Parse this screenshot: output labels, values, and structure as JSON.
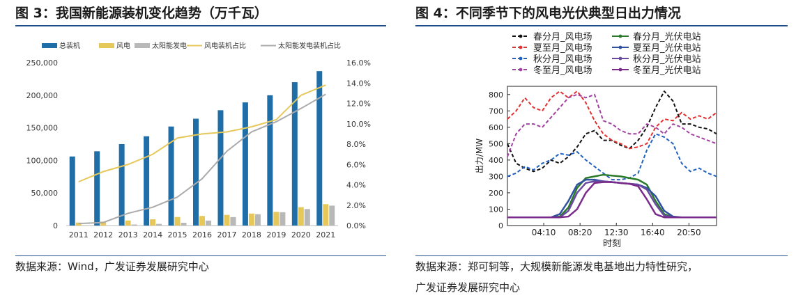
{
  "figures": [
    {
      "title": "图 3：我国新能源装机变化趋势（万千瓦）",
      "source": "数据来源：Wind，广发证券发展研究中心"
    },
    {
      "title": "图 4：不同季节下的风电光伏典型日出力情况",
      "source_line1": "数据来源：郑可轲等，大规模新能源发电基地出力特性研究，",
      "source_line2": "广发证券发展研究中心"
    }
  ],
  "chart_data": [
    {
      "type": "bar",
      "categories": [
        "2011",
        "2012",
        "2013",
        "2014",
        "2015",
        "2016",
        "2017",
        "2018",
        "2019",
        "2020",
        "2021"
      ],
      "series": [
        {
          "name": "总装机",
          "kind": "bar",
          "axis": "left",
          "color": "#1f6ea8",
          "values": [
            106000,
            114000,
            125000,
            137000,
            152000,
            164000,
            177000,
            189000,
            200000,
            220000,
            237000
          ]
        },
        {
          "name": "风电",
          "kind": "bar",
          "axis": "left",
          "color": "#e6c85a",
          "values": [
            4600,
            6100,
            7700,
            9600,
            13100,
            14700,
            16400,
            18400,
            21000,
            28200,
            32800
          ]
        },
        {
          "name": "太阳能发电",
          "kind": "bar",
          "axis": "left",
          "color": "#b8b8b8",
          "values": [
            200,
            340,
            1600,
            2500,
            4300,
            7600,
            13000,
            17400,
            20500,
            25300,
            30600
          ]
        },
        {
          "name": "风电装机占比",
          "kind": "line",
          "axis": "right",
          "color": "#e6c85a",
          "values": [
            4.3,
            5.3,
            6.0,
            7.0,
            8.6,
            9.0,
            9.2,
            9.7,
            10.4,
            12.8,
            13.8
          ]
        },
        {
          "name": "太阳能发电装机占比",
          "kind": "line",
          "axis": "right",
          "color": "#aaaaaa",
          "values": [
            0.2,
            0.3,
            1.2,
            1.8,
            2.8,
            4.6,
            7.3,
            9.2,
            10.2,
            11.5,
            12.9
          ]
        }
      ],
      "yticks_left": [
        "0",
        "50,000",
        "100,000",
        "150,000",
        "200,000",
        "250,000"
      ],
      "yticks_right": [
        "0.0%",
        "2.0%",
        "4.0%",
        "6.0%",
        "8.0%",
        "10.0%",
        "12.0%",
        "14.0%",
        "16.0%"
      ],
      "ylim_left": [
        0,
        250000
      ],
      "ylim_right": [
        0,
        16
      ],
      "legend_position": "top"
    },
    {
      "type": "line",
      "ylabel": "出力/MW",
      "xlabel": "时刻",
      "xticks": [
        "04:10",
        "08:20",
        "12:30",
        "16:40",
        "20:50"
      ],
      "xtick_hours": [
        4.1667,
        8.3333,
        12.5,
        16.6667,
        20.8333
      ],
      "yticks": [
        "0",
        "100",
        "200",
        "300",
        "400",
        "500",
        "600",
        "700",
        "800"
      ],
      "xlim": [
        0,
        24
      ],
      "ylim": [
        0,
        850
      ],
      "legend_position": "top",
      "hours": [
        0,
        1,
        2,
        3,
        4,
        5,
        6,
        7,
        8,
        9,
        10,
        11,
        12,
        13,
        14,
        15,
        16,
        17,
        18,
        19,
        20,
        21,
        22,
        23,
        24
      ],
      "series": [
        {
          "name": "春分月_风电场",
          "color": "#111111",
          "dash": "5,3",
          "values": [
            500,
            380,
            350,
            330,
            350,
            400,
            380,
            420,
            480,
            560,
            580,
            520,
            520,
            490,
            470,
            520,
            600,
            720,
            820,
            760,
            620,
            620,
            600,
            590,
            560
          ]
        },
        {
          "name": "夏至月_风电场",
          "color": "#e03030",
          "dash": "5,3",
          "values": [
            650,
            700,
            780,
            720,
            700,
            780,
            820,
            780,
            820,
            750,
            640,
            560,
            520,
            500,
            470,
            480,
            500,
            600,
            650,
            640,
            690,
            650,
            670,
            650,
            690
          ]
        },
        {
          "name": "秋分月_风电场",
          "color": "#2060c0",
          "dash": "5,3",
          "values": [
            300,
            320,
            360,
            340,
            380,
            400,
            440,
            430,
            450,
            400,
            360,
            320,
            280,
            280,
            290,
            320,
            460,
            560,
            540,
            500,
            380,
            330,
            350,
            320,
            300
          ]
        },
        {
          "name": "冬至月_风电场",
          "color": "#a040a0",
          "dash": "5,3",
          "values": [
            420,
            560,
            620,
            620,
            600,
            660,
            720,
            780,
            800,
            780,
            800,
            640,
            620,
            580,
            560,
            560,
            620,
            600,
            560,
            620,
            600,
            560,
            540,
            520,
            500
          ]
        },
        {
          "name": "春分月_光伏电站",
          "color": "#2a7a2a",
          "dash": "",
          "values": [
            50,
            50,
            50,
            50,
            50,
            50,
            55,
            110,
            230,
            290,
            300,
            310,
            305,
            300,
            290,
            280,
            250,
            150,
            70,
            50,
            50,
            50,
            50,
            50,
            50
          ]
        },
        {
          "name": "夏至月_光伏电站",
          "color": "#3050a0",
          "dash": "",
          "values": [
            50,
            50,
            50,
            50,
            50,
            50,
            70,
            150,
            250,
            280,
            280,
            270,
            265,
            260,
            255,
            250,
            230,
            180,
            90,
            55,
            50,
            50,
            50,
            50,
            50
          ]
        },
        {
          "name": "秋分月_光伏电站",
          "color": "#6a4aa0",
          "dash": "",
          "values": [
            50,
            50,
            50,
            50,
            50,
            50,
            50,
            90,
            200,
            260,
            270,
            270,
            265,
            260,
            255,
            250,
            220,
            130,
            60,
            50,
            50,
            50,
            50,
            50,
            50
          ]
        },
        {
          "name": "冬至月_光伏电站",
          "color": "#7a2a8a",
          "dash": "",
          "values": [
            50,
            50,
            50,
            50,
            50,
            50,
            50,
            55,
            100,
            200,
            260,
            265,
            265,
            260,
            255,
            240,
            160,
            70,
            50,
            50,
            50,
            50,
            50,
            50,
            50
          ]
        }
      ]
    }
  ]
}
